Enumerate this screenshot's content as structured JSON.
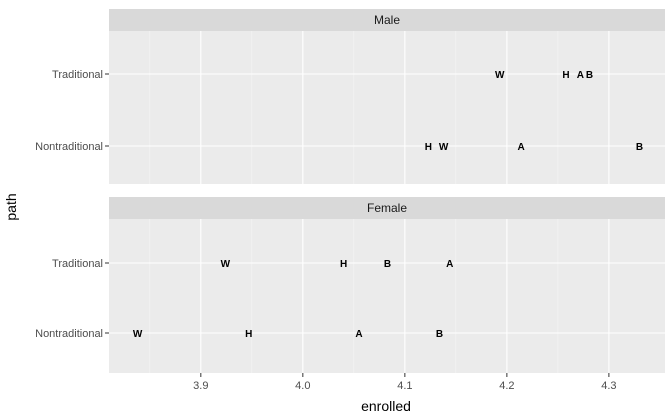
{
  "chart_data": {
    "type": "scatter",
    "marker": "text-label",
    "xlabel": "enrolled",
    "ylabel": "path",
    "xlim": [
      3.81,
      4.355
    ],
    "x_ticks": [
      "3.9",
      "4.0",
      "4.1",
      "4.2",
      "4.3"
    ],
    "y_categories": [
      "Traditional",
      "Nontraditional"
    ],
    "grid": true,
    "panels": [
      {
        "strip": "Male",
        "points": [
          {
            "label": "W",
            "path": "Traditional",
            "x": 4.193
          },
          {
            "label": "H",
            "path": "Traditional",
            "x": 4.258
          },
          {
            "label": "A",
            "path": "Traditional",
            "x": 4.272
          },
          {
            "label": "B",
            "path": "Traditional",
            "x": 4.281
          },
          {
            "label": "H",
            "path": "Nontraditional",
            "x": 4.123
          },
          {
            "label": "W",
            "path": "Nontraditional",
            "x": 4.138
          },
          {
            "label": "A",
            "path": "Nontraditional",
            "x": 4.214
          },
          {
            "label": "B",
            "path": "Nontraditional",
            "x": 4.33
          }
        ]
      },
      {
        "strip": "Female",
        "points": [
          {
            "label": "W",
            "path": "Traditional",
            "x": 3.924
          },
          {
            "label": "H",
            "path": "Traditional",
            "x": 4.04
          },
          {
            "label": "B",
            "path": "Traditional",
            "x": 4.083
          },
          {
            "label": "A",
            "path": "Traditional",
            "x": 4.144
          },
          {
            "label": "W",
            "path": "Nontraditional",
            "x": 3.838
          },
          {
            "label": "H",
            "path": "Nontraditional",
            "x": 3.947
          },
          {
            "label": "A",
            "path": "Nontraditional",
            "x": 4.055
          },
          {
            "label": "B",
            "path": "Nontraditional",
            "x": 4.134
          }
        ]
      }
    ]
  },
  "colors": {
    "panel_bg": "#ebebeb",
    "strip_bg": "#d9d9d9",
    "grid_major": "#ffffff",
    "tick": "#333333"
  }
}
